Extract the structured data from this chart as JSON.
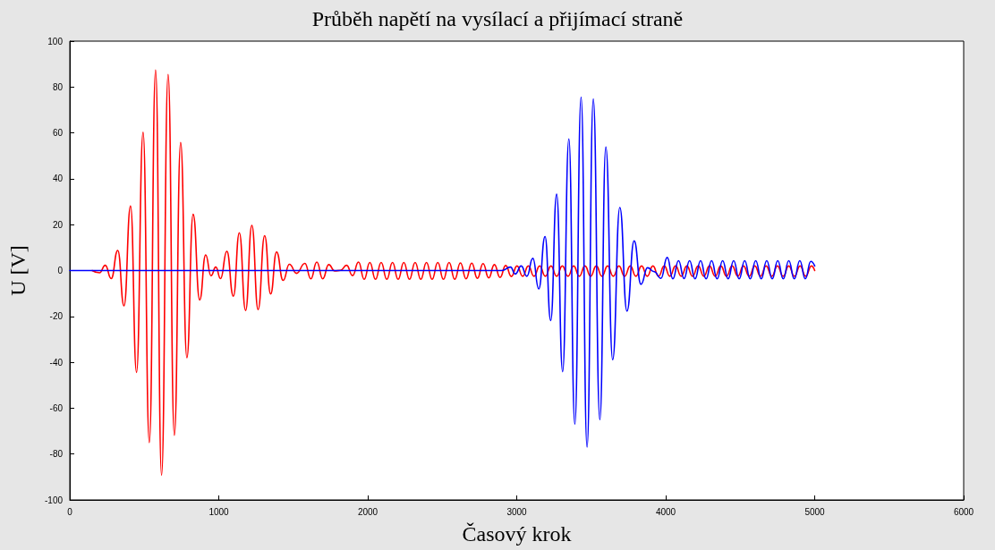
{
  "chart_data": {
    "type": "line",
    "title": "Průběh napětí na vysílací a přijímací straně",
    "xlabel": "Časový krok",
    "ylabel": "U [V]",
    "xlim": [
      0,
      6000
    ],
    "xticks": [
      0,
      1000,
      2000,
      3000,
      4000,
      5000,
      6000
    ],
    "ylim": [
      -100,
      100
    ],
    "yticks": [
      -100,
      -80,
      -60,
      -40,
      -20,
      0,
      20,
      40,
      60,
      80,
      100
    ],
    "grid": false,
    "marker": "none",
    "line_style": "solid",
    "series": [
      {
        "color": "#ff0000",
        "x": [
          150,
          200,
          238,
          278,
          322,
          364,
          408,
          448,
          492,
          534,
          576,
          616,
          660,
          702,
          744,
          786,
          828,
          872,
          912,
          948,
          980,
          1012,
          1054,
          1098,
          1138,
          1180,
          1222,
          1264,
          1308,
          1348,
          1388,
          1432,
          1474,
          1522,
          1578,
          1618,
          1658,
          1698,
          1738,
          1778,
          1818,
          1858,
          1898,
          1938,
          1976,
          2014,
          2052,
          2090,
          2128,
          2166,
          2204,
          2242,
          2280,
          2318,
          2356,
          2394,
          2432,
          2470,
          2508,
          2546,
          2584,
          2622,
          2660,
          2698,
          2736,
          2774,
          2812,
          2850,
          2888,
          2926,
          2964,
          3002,
          3040,
          3078,
          3116,
          3154,
          3192,
          3230,
          3268,
          3306,
          3344,
          3382,
          3420,
          3458,
          3496,
          3534,
          3572,
          3610,
          3648,
          3686,
          3724,
          3762,
          3800,
          3838,
          3876,
          3914,
          3952,
          3990,
          4028,
          4066,
          4104,
          4142,
          4180,
          4218,
          4256,
          4294,
          4332,
          4370,
          4408,
          4446,
          4484,
          4522,
          4560,
          4598,
          4636,
          4674,
          4712,
          4750,
          4788,
          4826,
          4864,
          4902,
          4940,
          4978,
          5000
        ],
        "values": [
          0,
          -1,
          2.3,
          -3.5,
          8.8,
          -15.4,
          28.1,
          -44.4,
          60.3,
          -75,
          87.4,
          -89.2,
          85.5,
          -71.8,
          55.8,
          -38,
          24.5,
          -12.8,
          6.8,
          -2.3,
          1.5,
          -3.5,
          8.4,
          -11.2,
          16.5,
          -17.4,
          19.7,
          -17,
          15.2,
          -10.2,
          8.1,
          -4.3,
          2.7,
          -1.2,
          3.1,
          -3.6,
          3.7,
          -3.6,
          2.6,
          -0.2,
          0.1,
          2.3,
          -2.2,
          3.7,
          -3.8,
          3.5,
          -3.8,
          3.5,
          -3.8,
          3.5,
          -3.8,
          3.5,
          -3.8,
          3.5,
          -3.8,
          3.5,
          -3.8,
          3.5,
          -3.8,
          3.5,
          -3.8,
          3.3,
          -3.6,
          3.2,
          -3.4,
          3,
          -3.2,
          2.6,
          -3,
          2.2,
          -2.6,
          2,
          -2.5,
          2,
          -2.5,
          2,
          -2.5,
          2,
          -2.5,
          2,
          -2.5,
          2,
          -2.5,
          2,
          -2.5,
          2,
          -2.5,
          2,
          -2.5,
          2,
          -2.5,
          2,
          -2.5,
          2,
          -2.5,
          2,
          -2.5,
          2,
          -2.5,
          2,
          -2.5,
          2,
          -2.5,
          2,
          -2.5,
          2,
          -2.5,
          2,
          -2.5,
          2,
          -2.5,
          2,
          -2.5,
          2,
          -2.5,
          2,
          -2.5,
          2,
          -2.5,
          2,
          -2.5,
          2,
          -2.5,
          2,
          0
        ]
      },
      {
        "color": "#0000ff",
        "x": [
          0,
          2900,
          2958,
          2990,
          3030,
          3068,
          3108,
          3148,
          3190,
          3228,
          3268,
          3308,
          3350,
          3390,
          3432,
          3472,
          3514,
          3558,
          3598,
          3644,
          3692,
          3740,
          3788,
          3834,
          3878,
          3922,
          3968,
          4010,
          4048,
          4086,
          4123,
          4160,
          4197,
          4234,
          4271,
          4308,
          4345,
          4382,
          4419,
          4456,
          4493,
          4530,
          4567,
          4604,
          4641,
          4678,
          4715,
          4752,
          4789,
          4826,
          4863,
          4900,
          4937,
          4974,
          5000
        ],
        "values": [
          0,
          0,
          1.5,
          -1.5,
          2,
          -2.5,
          5.3,
          -8,
          14.8,
          -21.8,
          33.3,
          -44.1,
          57.4,
          -67,
          75.6,
          -77,
          74.8,
          -65.1,
          53.9,
          -38.9,
          27.5,
          -17.7,
          12.9,
          -6,
          1.2,
          -0.5,
          -3.4,
          5.7,
          -3.6,
          4.3,
          -3.5,
          4.3,
          -3.6,
          4.3,
          -3.6,
          4.3,
          -3.6,
          4.3,
          -3.6,
          4.3,
          -3.6,
          4.3,
          -3.6,
          4.3,
          -3.6,
          4.3,
          -3.6,
          4.3,
          -3.6,
          4.3,
          -3.6,
          4.3,
          -3.6,
          4,
          2
        ]
      }
    ]
  }
}
